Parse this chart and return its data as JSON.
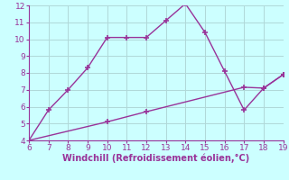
{
  "line1_x": [
    6,
    7,
    8,
    9,
    10,
    11,
    12,
    13,
    14,
    15,
    16,
    17,
    18,
    19
  ],
  "line1_y": [
    4.0,
    5.8,
    7.0,
    8.3,
    10.1,
    10.1,
    10.1,
    11.1,
    12.1,
    10.4,
    8.1,
    5.8,
    7.1,
    7.9
  ],
  "line2_x": [
    6,
    10,
    12,
    17,
    18,
    19
  ],
  "line2_y": [
    4.0,
    5.1,
    5.7,
    7.15,
    7.1,
    7.9
  ],
  "color": "#993399",
  "bg_color": "#ccffff",
  "grid_color": "#b0d8d8",
  "xlabel": "Windchill (Refroidissement éolien,°C)",
  "xlim": [
    6,
    19
  ],
  "ylim": [
    4,
    12
  ],
  "xticks": [
    6,
    7,
    8,
    9,
    10,
    11,
    12,
    13,
    14,
    15,
    16,
    17,
    18,
    19
  ],
  "yticks": [
    4,
    5,
    6,
    7,
    8,
    9,
    10,
    11,
    12
  ],
  "xlabel_color": "#993399",
  "tick_color": "#993399",
  "marker": "+",
  "markersize": 5,
  "linewidth": 1.0,
  "font_size_ticks": 6.5,
  "font_size_xlabel": 7.0
}
